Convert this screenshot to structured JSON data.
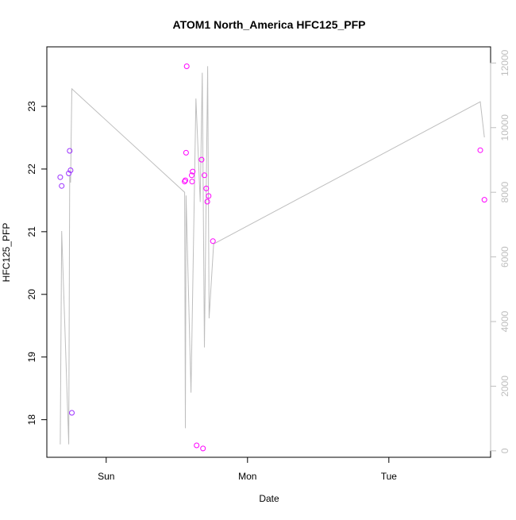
{
  "chart_data": {
    "type": "scatter",
    "title": "ATOM1 North_America HFC125_PFP",
    "xlabel": "Date",
    "ylabel": "HFC125_PFP",
    "x_ticks": [
      "Sun",
      "Mon",
      "Tue"
    ],
    "x_tick_values": [
      0,
      1,
      2
    ],
    "xlim": [
      -0.42,
      2.72
    ],
    "ylim": [
      17.4,
      23.95
    ],
    "y_ticks": [
      18,
      19,
      20,
      21,
      22,
      23
    ],
    "y2lim": [
      -200,
      12500
    ],
    "y2_ticks": [
      0,
      2000,
      4000,
      6000,
      8000,
      10000,
      12000
    ],
    "grid": false,
    "colors": {
      "line": "#bebebe",
      "axis": "#000000",
      "axis_right": "#bebebe",
      "point_early": "#9b30ff",
      "point_late": "#ff00ff"
    },
    "points": [
      {
        "x": -0.325,
        "y": 21.87
      },
      {
        "x": -0.315,
        "y": 21.73
      },
      {
        "x": -0.265,
        "y": 21.93
      },
      {
        "x": -0.258,
        "y": 22.29
      },
      {
        "x": -0.252,
        "y": 21.98
      },
      {
        "x": -0.243,
        "y": 18.11
      },
      {
        "x": 0.555,
        "y": 21.8
      },
      {
        "x": 0.56,
        "y": 21.82
      },
      {
        "x": 0.565,
        "y": 22.26
      },
      {
        "x": 0.57,
        "y": 23.64
      },
      {
        "x": 0.605,
        "y": 21.9
      },
      {
        "x": 0.608,
        "y": 21.8
      },
      {
        "x": 0.612,
        "y": 21.96
      },
      {
        "x": 0.64,
        "y": 17.59
      },
      {
        "x": 0.675,
        "y": 22.15
      },
      {
        "x": 0.685,
        "y": 17.54
      },
      {
        "x": 0.695,
        "y": 21.9
      },
      {
        "x": 0.708,
        "y": 21.69
      },
      {
        "x": 0.715,
        "y": 21.48
      },
      {
        "x": 0.725,
        "y": 21.57
      },
      {
        "x": 0.755,
        "y": 20.85
      },
      {
        "x": 2.647,
        "y": 22.3
      },
      {
        "x": 2.676,
        "y": 21.51
      }
    ],
    "secondary_line": [
      {
        "x": -0.325,
        "y2": 200
      },
      {
        "x": -0.315,
        "y2": 6800
      },
      {
        "x": -0.265,
        "y2": 200
      },
      {
        "x": -0.258,
        "y2": 8500
      },
      {
        "x": -0.252,
        "y2": 8300
      },
      {
        "x": -0.243,
        "y2": 11200
      },
      {
        "x": 0.555,
        "y2": 8000
      },
      {
        "x": 0.56,
        "y2": 700
      },
      {
        "x": 0.565,
        "y2": 7900
      },
      {
        "x": 0.6,
        "y2": 1800
      },
      {
        "x": 0.635,
        "y2": 10900
      },
      {
        "x": 0.665,
        "y2": 7700
      },
      {
        "x": 0.68,
        "y2": 11700
      },
      {
        "x": 0.695,
        "y2": 3200
      },
      {
        "x": 0.718,
        "y2": 11900
      },
      {
        "x": 0.728,
        "y2": 4100
      },
      {
        "x": 0.76,
        "y2": 6400
      },
      {
        "x": 2.647,
        "y2": 10800
      },
      {
        "x": 2.676,
        "y2": 9700
      }
    ]
  }
}
